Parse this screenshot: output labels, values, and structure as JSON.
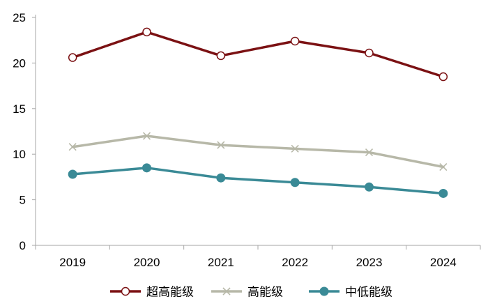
{
  "chart_data": {
    "type": "line",
    "categories": [
      "2019",
      "2020",
      "2021",
      "2022",
      "2023",
      "2024"
    ],
    "ylim": [
      0,
      25
    ],
    "yticks": [
      0,
      5,
      10,
      15,
      20,
      25
    ],
    "grid": false,
    "legend_position": "bottom-center",
    "series": [
      {
        "name": "超高能级",
        "values": [
          20.6,
          23.4,
          20.8,
          22.4,
          21.1,
          18.5
        ],
        "color": "#7b1113",
        "marker": "open-circle"
      },
      {
        "name": "高能级",
        "values": [
          10.8,
          12.0,
          11.0,
          10.6,
          10.2,
          8.6
        ],
        "color": "#b7b8a8",
        "marker": "x"
      },
      {
        "name": "中低能级",
        "values": [
          7.8,
          8.5,
          7.4,
          6.9,
          6.4,
          5.7
        ],
        "color": "#3a8a96",
        "marker": "filled-circle"
      }
    ]
  }
}
